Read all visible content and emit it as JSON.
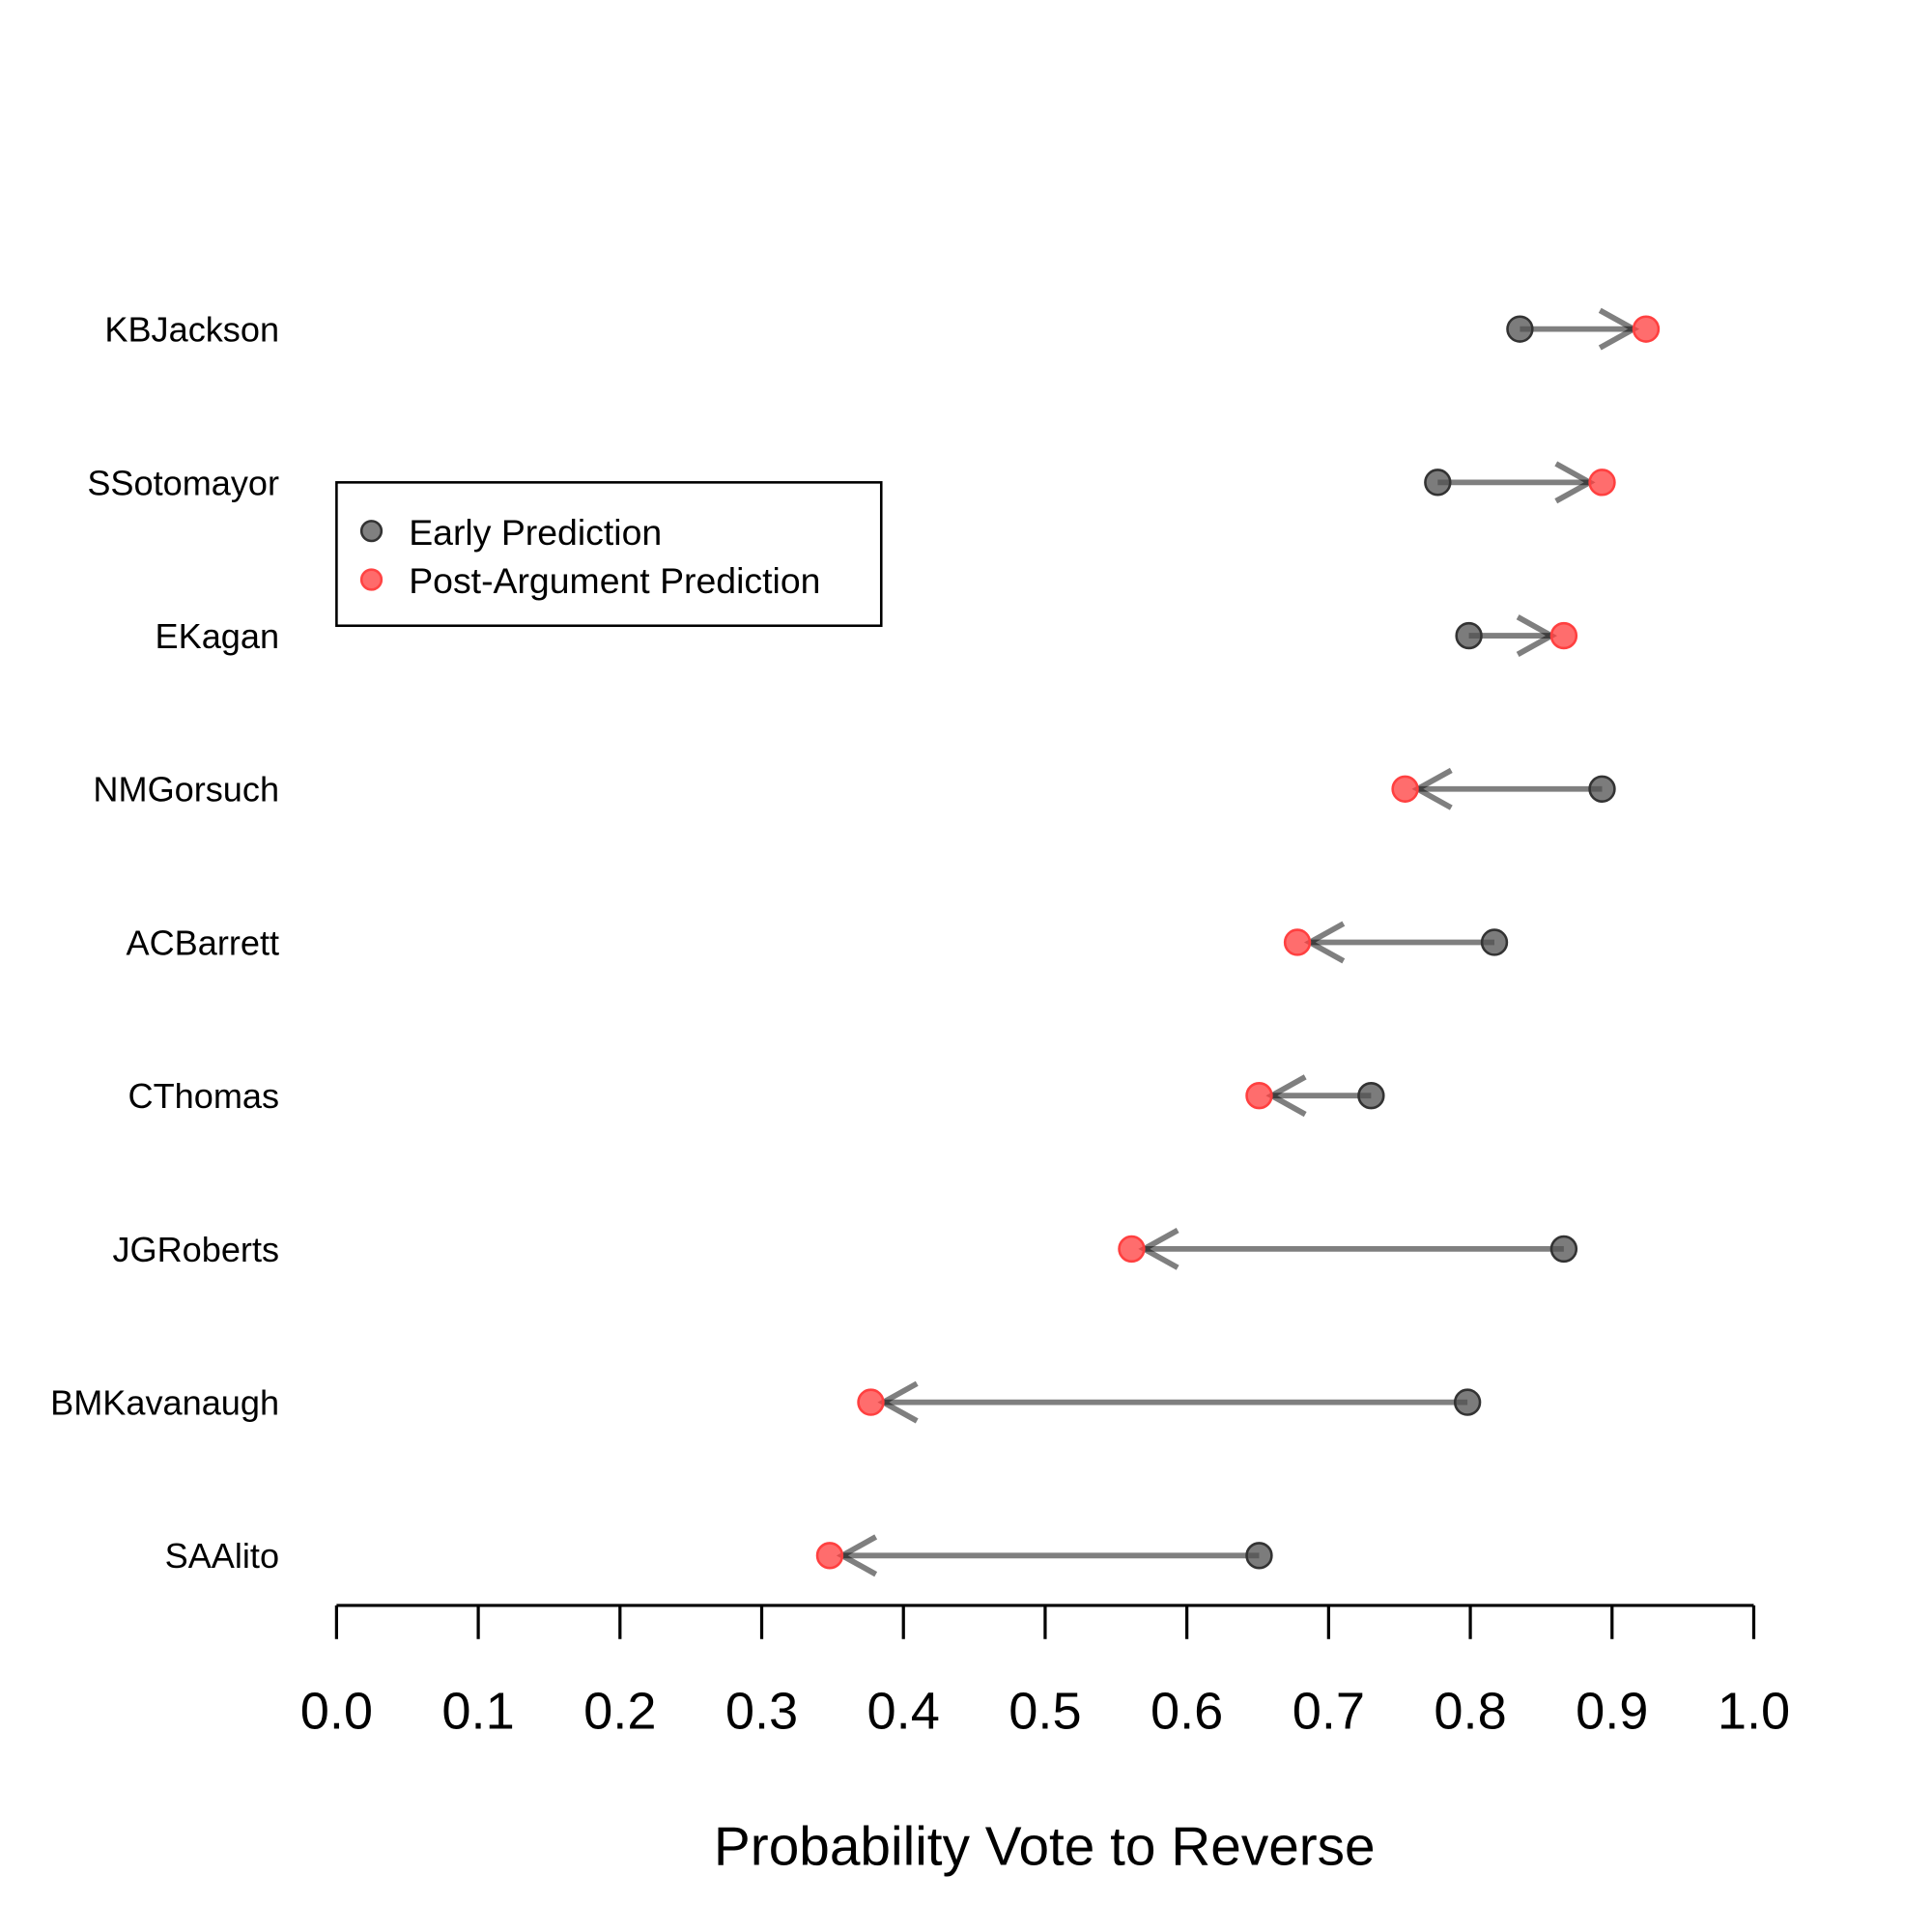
{
  "chart_data": {
    "type": "dot-arrow",
    "xlabel": "Probability Vote to Reverse",
    "ylabel": "",
    "xlim": [
      0.0,
      1.0
    ],
    "xticks": [
      "0.0",
      "0.1",
      "0.2",
      "0.3",
      "0.4",
      "0.5",
      "0.6",
      "0.7",
      "0.8",
      "0.9",
      "1.0"
    ],
    "grid": false,
    "legend_position": "upper-left",
    "categories": [
      "KBJackson",
      "SSotomayor",
      "EKagan",
      "NMGorsuch",
      "ACBarrett",
      "CThomas",
      "JGRoberts",
      "BMKavanaugh",
      "SAAlito"
    ],
    "series": [
      {
        "name": "Early Prediction",
        "color": "#666666",
        "values": [
          0.835,
          0.777,
          0.799,
          0.893,
          0.817,
          0.73,
          0.866,
          0.798,
          0.651
        ]
      },
      {
        "name": "Post-Argument Prediction",
        "color": "#ff5555",
        "values": [
          0.924,
          0.893,
          0.866,
          0.754,
          0.678,
          0.651,
          0.561,
          0.377,
          0.348
        ]
      }
    ]
  }
}
